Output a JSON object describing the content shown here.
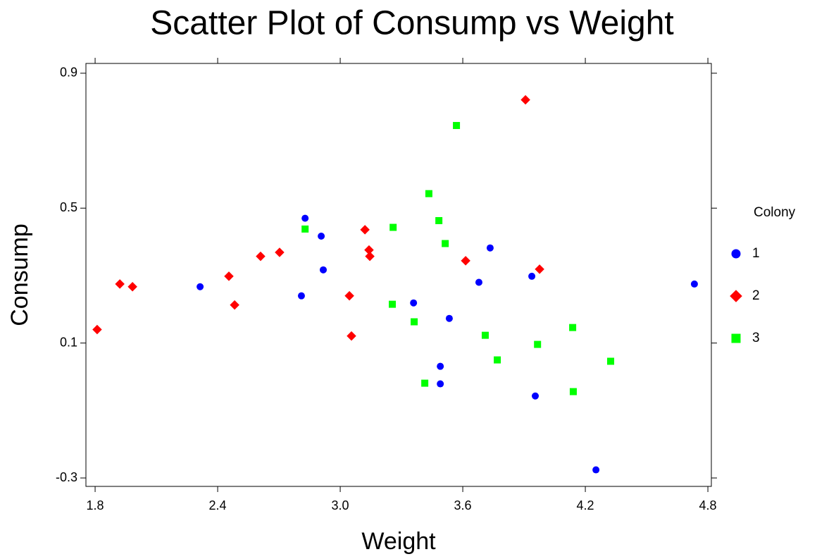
{
  "chart_data": {
    "type": "scatter",
    "title": "Scatter Plot of Consump vs Weight",
    "x_label": "Weight",
    "y_label": "Consump",
    "legend_title": "Colony",
    "legend": "right",
    "xlim": [
      1.755,
      4.817
    ],
    "ylim": [
      -0.325,
      0.929
    ],
    "xticks": [
      1.8,
      2.4,
      {
        "value": 3,
        "label": "3.0"
      },
      3.6,
      4.2,
      4.8
    ],
    "yticks": [
      -0.3,
      0.1,
      0.5,
      0.9
    ],
    "series": [
      {
        "name": "1",
        "color": "#0000ff",
        "marker": "circle",
        "x": [
          2.828,
          2.907,
          2.314,
          2.81,
          2.917,
          3.359,
          3.534,
          3.49,
          3.49,
          3.679,
          3.734,
          3.938,
          3.955,
          4.252,
          4.734
        ],
        "values": [
          0.47,
          0.417,
          0.267,
          0.24,
          0.317,
          0.219,
          0.173,
          0.031,
          -0.021,
          0.28,
          0.382,
          0.298,
          -0.057,
          -0.276,
          0.275
        ]
      },
      {
        "name": "2",
        "color": "#ff0000",
        "marker": "diamond",
        "x": [
          1.81,
          1.921,
          1.983,
          2.455,
          2.483,
          2.61,
          2.703,
          3.045,
          3.055,
          3.121,
          3.141,
          3.145,
          3.614,
          3.907,
          3.976
        ],
        "values": [
          0.14,
          0.275,
          0.267,
          0.298,
          0.213,
          0.357,
          0.369,
          0.24,
          0.121,
          0.436,
          0.376,
          0.357,
          0.344,
          0.821,
          0.319
        ]
      },
      {
        "name": "3",
        "color": "#00ff00",
        "marker": "square",
        "x": [
          2.828,
          3.259,
          3.255,
          3.362,
          3.414,
          3.434,
          3.483,
          3.514,
          3.569,
          3.71,
          3.769,
          3.966,
          4.138,
          4.141,
          4.324
        ],
        "values": [
          0.438,
          0.443,
          0.215,
          0.163,
          -0.019,
          0.543,
          0.463,
          0.395,
          0.745,
          0.123,
          0.05,
          0.096,
          0.146,
          -0.044,
          0.046
        ]
      }
    ]
  }
}
